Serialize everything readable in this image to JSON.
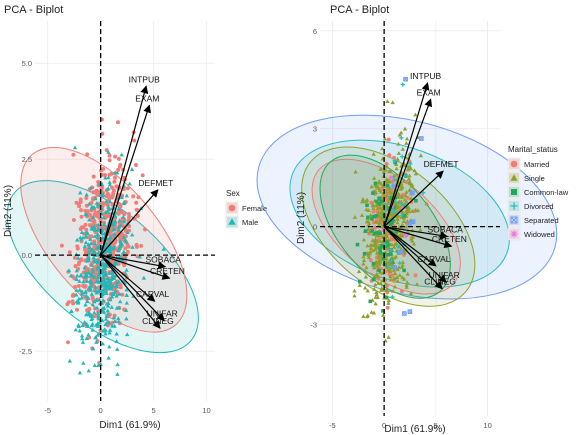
{
  "colors": {
    "female": "#f07e78",
    "male": "#23b7b7",
    "married": "#f07e78",
    "single": "#8fa12c",
    "common_law": "#22a85e",
    "divorced": "#2dbcbf",
    "separated": "#6f9cf7",
    "widowed": "#e67ad9",
    "panel_bg": "#ffffff",
    "grid": "#ebebeb"
  },
  "icons": {
    "legend_circle": "legend-circle-icon",
    "legend_triangle": "legend-triangle-icon",
    "legend_square": "legend-square-icon",
    "legend_plus": "legend-plus-icon",
    "legend_boxx": "legend-box-x-icon",
    "legend_asterisk": "legend-asterisk-icon"
  },
  "chart_data": [
    {
      "type": "scatter",
      "title": "PCA - Biplot",
      "xlabel": "Dim1 (61.9%)",
      "ylabel": "Dim2 (11%)",
      "xlim": [
        -6.2,
        10.8
      ],
      "ylim": [
        -3.8,
        6.1
      ],
      "x_ticks": [
        {
          "v": -5,
          "label": "-5"
        },
        {
          "v": 0,
          "label": "0"
        },
        {
          "v": 5,
          "label": "5"
        },
        {
          "v": 10,
          "label": "10"
        }
      ],
      "y_ticks": [
        {
          "v": -2.5,
          "label": "-2.5"
        },
        {
          "v": 0,
          "label": "0.0"
        },
        {
          "v": 2.5,
          "label": "2.5"
        },
        {
          "v": 5,
          "label": "5.0"
        }
      ],
      "grid": true,
      "reference_lines": [
        {
          "axis": "x",
          "v": 0
        },
        {
          "axis": "y",
          "v": 0
        }
      ],
      "legend": {
        "title": "Sex",
        "position": "right",
        "items": [
          {
            "label": "Female",
            "color_key": "female",
            "shape": "circle"
          },
          {
            "label": "Male",
            "color_key": "male",
            "shape": "triangle"
          }
        ]
      },
      "series": [
        {
          "name": "Female",
          "shape": "circle",
          "color_key": "female",
          "ellipse": {
            "cx": 0.3,
            "cy": 0.4,
            "rx": 5.2,
            "ry": 2.9,
            "angle": 8
          }
        },
        {
          "name": "Male",
          "shape": "triangle",
          "color_key": "male",
          "ellipse": {
            "cx": 0.2,
            "cy": -0.3,
            "rx": 5.4,
            "ry": 3.0,
            "angle": 10
          }
        }
      ],
      "points_note": "",
      "variables": [
        {
          "label": "INTPUB",
          "x": 4.3,
          "y": 4.4
        },
        {
          "label": "EXAM",
          "x": 4.6,
          "y": 3.9
        },
        {
          "label": "DEFMET",
          "x": 5.4,
          "y": 1.7
        },
        {
          "label": "SOBACA",
          "x": 6.1,
          "y": -0.3
        },
        {
          "label": "CRETEN",
          "x": 6.5,
          "y": -0.6
        },
        {
          "label": "CARVAL",
          "x": 5.1,
          "y": -1.2
        },
        {
          "label": "UNIFAR",
          "x": 6.0,
          "y": -1.7
        },
        {
          "label": "CLINEG",
          "x": 5.6,
          "y": -1.9
        }
      ]
    },
    {
      "type": "scatter",
      "title": "PCA - Biplot",
      "xlabel": "Dim1 (61.9%)",
      "ylabel": "Dim2 (11%)",
      "xlim": [
        -6.2,
        11.2
      ],
      "ylim": [
        -5.8,
        6.3
      ],
      "x_ticks": [
        {
          "v": -5,
          "label": "-5"
        },
        {
          "v": 0,
          "label": "0"
        },
        {
          "v": 5,
          "label": "5"
        },
        {
          "v": 10,
          "label": "10"
        }
      ],
      "y_ticks": [
        {
          "v": -3,
          "label": "-3"
        },
        {
          "v": 0,
          "label": "0"
        },
        {
          "v": 3,
          "label": "3"
        },
        {
          "v": 6,
          "label": "6"
        }
      ],
      "grid": true,
      "reference_lines": [
        {
          "axis": "x",
          "v": 0
        },
        {
          "axis": "y",
          "v": 0
        }
      ],
      "legend": {
        "title": "Marital_status",
        "position": "right",
        "items": [
          {
            "label": "Married",
            "color_key": "married",
            "shape": "circle"
          },
          {
            "label": "Single",
            "color_key": "single",
            "shape": "triangle"
          },
          {
            "label": "Common-law",
            "color_key": "common_law",
            "shape": "square"
          },
          {
            "label": "Divorced",
            "color_key": "divorced",
            "shape": "plus"
          },
          {
            "label": "Separated",
            "color_key": "separated",
            "shape": "boxx"
          },
          {
            "label": "Widowed",
            "color_key": "widowed",
            "shape": "asterisk"
          }
        ]
      },
      "series": [
        {
          "name": "Married",
          "shape": "circle",
          "color_key": "married",
          "ellipse": {
            "cx": 0.2,
            "cy": 0.0,
            "rx": 4.6,
            "ry": 2.7,
            "angle": 10
          }
        },
        {
          "name": "Single",
          "shape": "triangle",
          "color_key": "single",
          "ellipse": {
            "cx": 0.4,
            "cy": 0.0,
            "rx": 5.8,
            "ry": 3.1,
            "angle": 10
          }
        },
        {
          "name": "Common-law",
          "shape": "square",
          "color_key": "common_law",
          "ellipse": {
            "cx": 0.1,
            "cy": 0.0,
            "rx": 4.5,
            "ry": 2.6,
            "angle": 8
          }
        },
        {
          "name": "Divorced",
          "shape": "plus",
          "color_key": "divorced",
          "ellipse": {
            "cx": 1.5,
            "cy": 0.4,
            "rx": 6.4,
            "ry": 3.5,
            "angle": 14
          }
        },
        {
          "name": "Separated",
          "shape": "boxx",
          "color_key": "separated",
          "ellipse": {
            "cx": 2.2,
            "cy": 0.6,
            "rx": 8.3,
            "ry": 4.7,
            "angle": 15
          }
        },
        {
          "name": "Widowed",
          "shape": "asterisk",
          "color_key": "widowed",
          "ellipse": null
        }
      ],
      "variables": [
        {
          "label": "INTPUB",
          "x": 4.2,
          "y": 4.4
        },
        {
          "label": "EXAM",
          "x": 4.5,
          "y": 3.9
        },
        {
          "label": "DEFMET",
          "x": 5.7,
          "y": 1.7
        },
        {
          "label": "SOBACA",
          "x": 6.1,
          "y": -0.3
        },
        {
          "label": "CRETEN",
          "x": 6.5,
          "y": -0.6
        },
        {
          "label": "CARVAL",
          "x": 5.0,
          "y": -1.2
        },
        {
          "label": "UNIFAR",
          "x": 6.0,
          "y": -1.7
        },
        {
          "label": "CLINEG",
          "x": 5.6,
          "y": -1.9
        }
      ]
    }
  ]
}
